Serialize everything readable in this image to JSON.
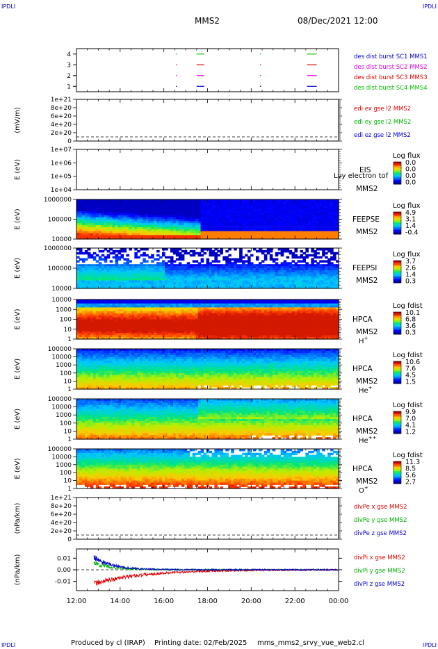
{
  "corners": {
    "top_left": "IPDLI",
    "top_right": "IPDLI",
    "bottom_left": "IPDLI",
    "bottom_right": "IPDLI"
  },
  "header": {
    "spacecraft": "MMS2",
    "date": "08/Dec/2021 12:00"
  },
  "footer": {
    "producer": "Produced by cl (IRAP)",
    "printed": "Printing date: 02/Feb/2025",
    "file": "mms_mms2_srvy_vue_web2.cl"
  },
  "colors": {
    "red": "#e00000",
    "magenta": "#e000e0",
    "green": "#00c000",
    "blue": "#0000d0",
    "dark_green": "#00b000"
  },
  "chart_data": [
    {
      "type": "scatter",
      "id": "burst",
      "ylim": [
        0.5,
        4.5
      ],
      "yticks": [
        "1",
        "2",
        "3",
        "4"
      ],
      "series": [
        {
          "name": "des dist burst SC1 MMS1",
          "color": "#0000d0",
          "level": 1
        },
        {
          "name": "des dist burst SC2 MMS2",
          "color": "#e000e0",
          "level": 2
        },
        {
          "name": "des dist burst SC3 MMS3",
          "color": "#e00000",
          "level": 3
        },
        {
          "name": "des dist burst SC4 MMS4",
          "color": "#00c000",
          "level": 4
        }
      ],
      "segments_hours": [
        [
          16.55,
          16.6
        ],
        [
          17.5,
          17.85
        ],
        [
          20.4,
          20.45
        ],
        [
          22.55,
          23.0
        ]
      ]
    },
    {
      "type": "line",
      "id": "edi",
      "ylabel": "(mV/m)",
      "yticks": [
        "1e+21",
        "8e+20",
        "6e+20",
        "4e+20",
        "2e+20",
        "0"
      ],
      "series": [
        {
          "name": "edi ex gse l2 MMS2",
          "color": "#e00000"
        },
        {
          "name": "edi ey gse l2 MMS2",
          "color": "#00b000"
        },
        {
          "name": "edi ez gse l2 MMS2",
          "color": "#0000d0"
        }
      ]
    },
    {
      "type": "heatmap",
      "id": "eis",
      "ylabel": "E (eV)",
      "yticks": [
        "1e+07",
        "1e+06",
        "1e+05",
        "1e+04"
      ],
      "instrument": "EIS",
      "sc": "MMS2",
      "overlay": "Lvy electron tof",
      "cbar_title": "Log flux",
      "cbar_ticks": [
        "0.0",
        "0.0",
        "0.0",
        "0.0"
      ]
    },
    {
      "type": "heatmap",
      "id": "feeps_e",
      "ylabel": "E (eV)",
      "yticks": [
        "1000000",
        "100000",
        "10000"
      ],
      "instrument": "FEEPSE",
      "sc": "MMS2",
      "cbar_title": "Log flux",
      "cbar_ticks": [
        "4.9",
        "3.1",
        "1.4",
        "-0.4"
      ]
    },
    {
      "type": "heatmap",
      "id": "feeps_i",
      "ylabel": "E (eV)",
      "yticks": [
        "1000000",
        "100000",
        "10000"
      ],
      "instrument": "FEEPSI",
      "sc": "MMS2",
      "cbar_title": "Log flux",
      "cbar_ticks": [
        "3.7",
        "2.6",
        "1.4",
        "0.3"
      ]
    },
    {
      "type": "heatmap",
      "id": "hpca_h",
      "ylabel": "E (eV)",
      "yticks": [
        "10000",
        "1000",
        "100",
        "10",
        "1"
      ],
      "instrument": "HPCA",
      "sc": "MMS2",
      "species": "H",
      "charge": "+",
      "cbar_title": "Log fdist",
      "cbar_ticks": [
        "10.1",
        "6.8",
        "3.6",
        "0.3"
      ]
    },
    {
      "type": "heatmap",
      "id": "hpca_he",
      "ylabel": "E (eV)",
      "yticks": [
        "100000",
        "10000",
        "1000",
        "100",
        "10",
        "1"
      ],
      "instrument": "HPCA",
      "sc": "MMS2",
      "species": "He",
      "charge": "+",
      "cbar_title": "Log fdist",
      "cbar_ticks": [
        "10.6",
        "7.6",
        "4.5",
        "1.5"
      ]
    },
    {
      "type": "heatmap",
      "id": "hpca_hepp",
      "ylabel": "E (eV)",
      "yticks": [
        "100000",
        "10000",
        "1000",
        "100",
        "10",
        "1"
      ],
      "instrument": "HPCA",
      "sc": "MMS2",
      "species": "He",
      "charge": "++",
      "cbar_title": "Log fdist",
      "cbar_ticks": [
        "9.9",
        "7.0",
        "4.1",
        "1.2"
      ]
    },
    {
      "type": "heatmap",
      "id": "hpca_o",
      "ylabel": "E (eV)",
      "yticks": [
        "100000",
        "10000",
        "1000",
        "100",
        "10",
        "1"
      ],
      "instrument": "HPCA",
      "sc": "MMS2",
      "species": "O",
      "charge": "+",
      "cbar_title": "Log fdist",
      "cbar_ticks": [
        "11.3",
        "8.5",
        "5.6",
        "2.7"
      ]
    },
    {
      "type": "line",
      "id": "divpe",
      "ylabel": "(nPa/km)",
      "yticks": [
        "1e+21",
        "8e+20",
        "6e+20",
        "4e+20",
        "2e+20",
        "0"
      ],
      "series": [
        {
          "name": "divPe x gse MMS2",
          "color": "#e00000"
        },
        {
          "name": "divPe y gse MMS2",
          "color": "#00b000"
        },
        {
          "name": "divPe z gse MMS2",
          "color": "#0000d0"
        }
      ]
    },
    {
      "type": "line",
      "id": "divpi",
      "ylabel": "(nPa/km)",
      "yticks": [
        "0.01",
        "0.00",
        "-0.01"
      ],
      "ylim": [
        -0.018,
        0.018
      ],
      "series": [
        {
          "name": "divPi x gse MMS2",
          "color": "#e00000"
        },
        {
          "name": "divPi y gse MMS2",
          "color": "#00b000"
        },
        {
          "name": "divPi z gse MMS2",
          "color": "#0000d0"
        }
      ]
    }
  ],
  "time_axis": {
    "ticks": [
      "12:00",
      "14:00",
      "16:00",
      "18:00",
      "20:00",
      "22:00",
      "00:00"
    ],
    "start_hour": 12,
    "end_hour": 24
  }
}
